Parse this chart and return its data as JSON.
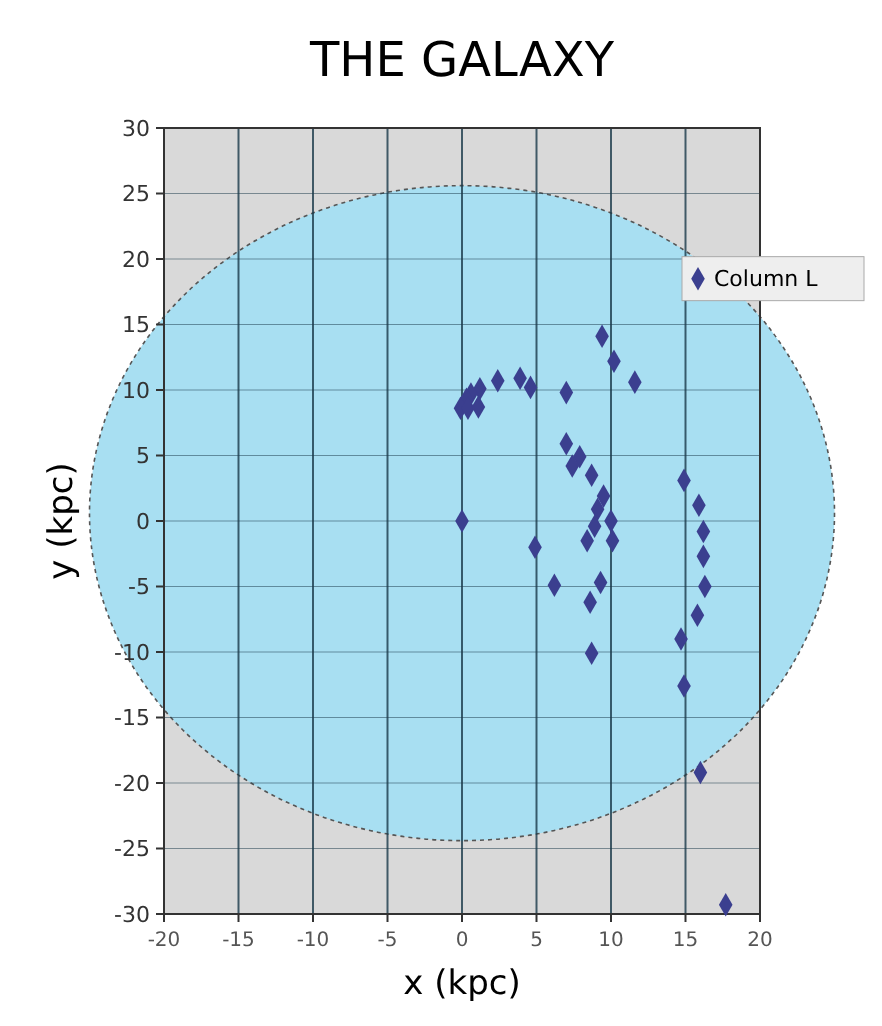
{
  "chart_data": {
    "type": "scatter",
    "title": "THE GALAXY",
    "xlabel": "x (kpc)",
    "ylabel": "y (kpc)",
    "xlim": [
      -20,
      20
    ],
    "xticks": [
      -20,
      -15,
      -10,
      -5,
      0,
      5,
      10,
      15,
      20
    ],
    "ylim": [
      -30,
      30
    ],
    "yticks": [
      -30,
      -25,
      -20,
      -15,
      -10,
      -5,
      0,
      5,
      10,
      15,
      20,
      25,
      30
    ],
    "grid": true,
    "legend": "top right",
    "marker": "diamond",
    "series": [
      {
        "name": "Column L",
        "color": "#3b3f8f",
        "x": [
          9.4,
          10.2,
          11.6,
          2.4,
          3.9,
          4.6,
          1.2,
          0.6,
          0.3,
          -0.1,
          0.4,
          1.1,
          7.0,
          7.0,
          7.9,
          7.4,
          8.7,
          9.5,
          9.1,
          10.0,
          8.9,
          8.4,
          10.1,
          0,
          4.9,
          6.2,
          9.3,
          8.6,
          8.7,
          14.9,
          15.9,
          16.2,
          16.2,
          16.3,
          15.8,
          14.7,
          14.9,
          16.0,
          17.7
        ],
        "values": [
          14.1,
          12.2,
          10.6,
          10.7,
          10.9,
          10.2,
          10.1,
          9.7,
          9.3,
          8.6,
          8.6,
          8.7,
          9.8,
          5.9,
          4.9,
          4.2,
          3.5,
          1.9,
          0.9,
          0.0,
          -0.4,
          -1.5,
          -1.5,
          0,
          -2.0,
          -4.9,
          -4.7,
          -6.2,
          -10.1,
          3.1,
          1.2,
          -0.8,
          -2.7,
          -5.0,
          -7.2,
          -9.0,
          -12.6,
          -19.2,
          -29.3
        ]
      }
    ]
  }
}
